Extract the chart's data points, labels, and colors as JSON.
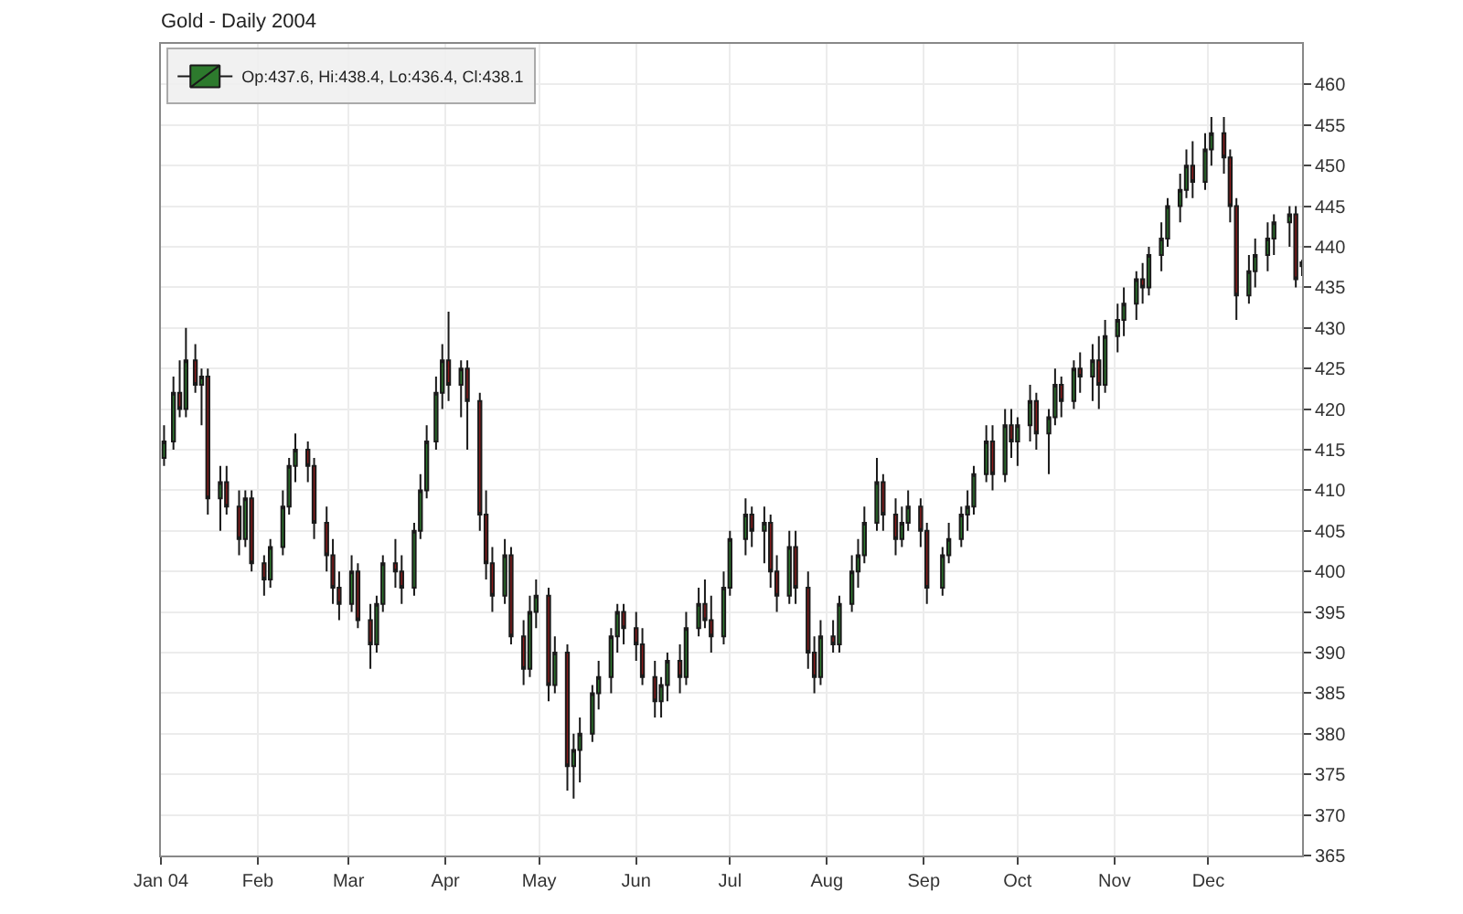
{
  "chart_data": {
    "type": "candlestick",
    "title": "Gold - Daily 2004",
    "x": [
      "2004-01-02",
      "2004-01-05",
      "2004-01-07",
      "2004-01-09",
      "2004-01-12",
      "2004-01-14",
      "2004-01-16",
      "2004-01-20",
      "2004-01-22",
      "2004-01-26",
      "2004-01-28",
      "2004-01-30",
      "2004-02-03",
      "2004-02-05",
      "2004-02-09",
      "2004-02-11",
      "2004-02-13",
      "2004-02-17",
      "2004-02-19",
      "2004-02-23",
      "2004-02-25",
      "2004-02-27",
      "2004-03-02",
      "2004-03-04",
      "2004-03-08",
      "2004-03-10",
      "2004-03-12",
      "2004-03-16",
      "2004-03-18",
      "2004-03-22",
      "2004-03-24",
      "2004-03-26",
      "2004-03-29",
      "2004-03-31",
      "2004-04-02",
      "2004-04-06",
      "2004-04-08",
      "2004-04-12",
      "2004-04-14",
      "2004-04-16",
      "2004-04-20",
      "2004-04-22",
      "2004-04-26",
      "2004-04-28",
      "2004-04-30",
      "2004-05-04",
      "2004-05-06",
      "2004-05-10",
      "2004-05-12",
      "2004-05-14",
      "2004-05-18",
      "2004-05-20",
      "2004-05-24",
      "2004-05-26",
      "2004-05-28",
      "2004-06-01",
      "2004-06-03",
      "2004-06-07",
      "2004-06-09",
      "2004-06-11",
      "2004-06-15",
      "2004-06-17",
      "2004-06-21",
      "2004-06-23",
      "2004-06-25",
      "2004-06-29",
      "2004-07-01",
      "2004-07-06",
      "2004-07-08",
      "2004-07-12",
      "2004-07-14",
      "2004-07-16",
      "2004-07-20",
      "2004-07-22",
      "2004-07-26",
      "2004-07-28",
      "2004-07-30",
      "2004-08-03",
      "2004-08-05",
      "2004-08-09",
      "2004-08-11",
      "2004-08-13",
      "2004-08-17",
      "2004-08-19",
      "2004-08-23",
      "2004-08-25",
      "2004-08-27",
      "2004-08-31",
      "2004-09-02",
      "2004-09-07",
      "2004-09-09",
      "2004-09-13",
      "2004-09-15",
      "2004-09-17",
      "2004-09-21",
      "2004-09-23",
      "2004-09-27",
      "2004-09-29",
      "2004-10-01",
      "2004-10-05",
      "2004-10-07",
      "2004-10-11",
      "2004-10-13",
      "2004-10-15",
      "2004-10-19",
      "2004-10-21",
      "2004-10-25",
      "2004-10-27",
      "2004-10-29",
      "2004-11-02",
      "2004-11-04",
      "2004-11-08",
      "2004-11-10",
      "2004-11-12",
      "2004-11-16",
      "2004-11-18",
      "2004-11-22",
      "2004-11-24",
      "2004-11-26",
      "2004-11-30",
      "2004-12-02",
      "2004-12-06",
      "2004-12-08",
      "2004-12-10",
      "2004-12-14",
      "2004-12-16",
      "2004-12-20",
      "2004-12-22",
      "2004-12-27",
      "2004-12-29",
      "2004-12-31"
    ],
    "series": [
      {
        "name": "Op:437.6, Hi:438.4, Lo:436.4, Cl:438.1",
        "ohlc": [
          [
            414,
            418,
            413,
            416
          ],
          [
            416,
            424,
            415,
            422
          ],
          [
            422,
            426,
            419,
            420
          ],
          [
            420,
            430,
            419,
            426
          ],
          [
            426,
            428,
            422,
            423
          ],
          [
            423,
            425,
            418,
            424
          ],
          [
            424,
            425,
            407,
            409
          ],
          [
            409,
            413,
            405,
            411
          ],
          [
            411,
            413,
            407,
            408
          ],
          [
            408,
            410,
            402,
            404
          ],
          [
            404,
            410,
            403,
            409
          ],
          [
            409,
            410,
            400,
            401
          ],
          [
            401,
            402,
            397,
            399
          ],
          [
            399,
            404,
            398,
            403
          ],
          [
            403,
            410,
            402,
            408
          ],
          [
            408,
            414,
            407,
            413
          ],
          [
            413,
            417,
            411,
            415
          ],
          [
            415,
            416,
            411,
            413
          ],
          [
            413,
            414,
            404,
            406
          ],
          [
            406,
            408,
            400,
            402
          ],
          [
            402,
            404,
            396,
            398
          ],
          [
            398,
            400,
            394,
            396
          ],
          [
            396,
            402,
            395,
            400
          ],
          [
            400,
            401,
            393,
            394
          ],
          [
            394,
            396,
            388,
            391
          ],
          [
            391,
            397,
            390,
            396
          ],
          [
            396,
            402,
            395,
            401
          ],
          [
            401,
            404,
            398,
            400
          ],
          [
            400,
            402,
            396,
            398
          ],
          [
            398,
            406,
            397,
            405
          ],
          [
            405,
            412,
            404,
            410
          ],
          [
            410,
            418,
            409,
            416
          ],
          [
            416,
            424,
            415,
            422
          ],
          [
            422,
            428,
            420,
            426
          ],
          [
            426,
            432,
            421,
            423
          ],
          [
            423,
            426,
            419,
            425
          ],
          [
            425,
            426,
            415,
            421
          ],
          [
            421,
            422,
            405,
            407
          ],
          [
            407,
            410,
            399,
            401
          ],
          [
            401,
            403,
            395,
            397
          ],
          [
            397,
            404,
            396,
            402
          ],
          [
            402,
            403,
            391,
            392
          ],
          [
            392,
            394,
            386,
            388
          ],
          [
            388,
            397,
            387,
            395
          ],
          [
            395,
            399,
            393,
            397
          ],
          [
            397,
            398,
            384,
            386
          ],
          [
            386,
            392,
            385,
            390
          ],
          [
            390,
            391,
            373,
            376
          ],
          [
            376,
            380,
            372,
            378
          ],
          [
            378,
            382,
            374,
            380
          ],
          [
            380,
            386,
            379,
            385
          ],
          [
            385,
            389,
            383,
            387
          ],
          [
            387,
            393,
            385,
            392
          ],
          [
            392,
            396,
            390,
            395
          ],
          [
            395,
            396,
            391,
            393
          ],
          [
            393,
            395,
            389,
            391
          ],
          [
            391,
            393,
            386,
            387
          ],
          [
            387,
            389,
            382,
            384
          ],
          [
            384,
            387,
            382,
            386
          ],
          [
            386,
            390,
            384,
            389
          ],
          [
            389,
            391,
            385,
            387
          ],
          [
            387,
            395,
            386,
            393
          ],
          [
            393,
            398,
            392,
            396
          ],
          [
            396,
            399,
            393,
            394
          ],
          [
            394,
            397,
            390,
            392
          ],
          [
            392,
            400,
            391,
            398
          ],
          [
            398,
            405,
            397,
            404
          ],
          [
            404,
            409,
            402,
            407
          ],
          [
            407,
            408,
            403,
            405
          ],
          [
            405,
            408,
            401,
            406
          ],
          [
            406,
            407,
            398,
            400
          ],
          [
            400,
            402,
            395,
            397
          ],
          [
            397,
            405,
            396,
            403
          ],
          [
            403,
            405,
            396,
            398
          ],
          [
            398,
            400,
            388,
            390
          ],
          [
            390,
            392,
            385,
            387
          ],
          [
            387,
            394,
            386,
            392
          ],
          [
            392,
            394,
            390,
            391
          ],
          [
            391,
            397,
            390,
            396
          ],
          [
            396,
            402,
            395,
            400
          ],
          [
            400,
            404,
            398,
            402
          ],
          [
            402,
            408,
            401,
            406
          ],
          [
            406,
            414,
            405,
            411
          ],
          [
            411,
            412,
            405,
            407
          ],
          [
            407,
            409,
            402,
            404
          ],
          [
            404,
            408,
            403,
            406
          ],
          [
            406,
            410,
            405,
            408
          ],
          [
            408,
            409,
            403,
            405
          ],
          [
            405,
            406,
            396,
            398
          ],
          [
            398,
            403,
            397,
            402
          ],
          [
            402,
            406,
            401,
            404
          ],
          [
            404,
            408,
            403,
            407
          ],
          [
            407,
            410,
            405,
            408
          ],
          [
            408,
            413,
            407,
            412
          ],
          [
            412,
            418,
            411,
            416
          ],
          [
            416,
            418,
            410,
            412
          ],
          [
            412,
            420,
            411,
            418
          ],
          [
            418,
            420,
            414,
            416
          ],
          [
            416,
            419,
            413,
            418
          ],
          [
            418,
            423,
            416,
            421
          ],
          [
            421,
            422,
            415,
            417
          ],
          [
            417,
            420,
            412,
            419
          ],
          [
            419,
            425,
            418,
            423
          ],
          [
            423,
            424,
            419,
            421
          ],
          [
            421,
            426,
            420,
            425
          ],
          [
            425,
            427,
            422,
            424
          ],
          [
            424,
            428,
            421,
            426
          ],
          [
            426,
            429,
            420,
            423
          ],
          [
            423,
            431,
            422,
            429
          ],
          [
            429,
            433,
            427,
            431
          ],
          [
            431,
            435,
            429,
            433
          ],
          [
            433,
            437,
            431,
            436
          ],
          [
            436,
            438,
            433,
            435
          ],
          [
            435,
            440,
            434,
            439
          ],
          [
            439,
            443,
            437,
            441
          ],
          [
            441,
            446,
            440,
            445
          ],
          [
            445,
            449,
            443,
            447
          ],
          [
            447,
            452,
            446,
            450
          ],
          [
            450,
            453,
            446,
            448
          ],
          [
            448,
            454,
            447,
            452
          ],
          [
            452,
            456,
            450,
            454
          ],
          [
            454,
            456,
            449,
            451
          ],
          [
            451,
            452,
            443,
            445
          ],
          [
            445,
            446,
            431,
            434
          ],
          [
            434,
            439,
            433,
            437
          ],
          [
            437,
            441,
            435,
            439
          ],
          [
            439,
            443,
            437,
            441
          ],
          [
            441,
            444,
            439,
            443
          ],
          [
            443,
            445,
            440,
            444
          ],
          [
            444,
            445,
            435,
            436
          ],
          [
            437.6,
            438.4,
            436.4,
            438.1
          ]
        ],
        "colors": [
          "#2d7a2d",
          "#2d7a2d",
          "#8b1a1a",
          "#2d7a2d",
          "#8b1a1a",
          "#2d7a2d",
          "#8b1a1a",
          "#2d7a2d",
          "#8b1a1a",
          "#8b1a1a",
          "#2d7a2d",
          "#8b1a1a",
          "#8b1a1a",
          "#2d7a2d",
          "#2d7a2d",
          "#2d7a2d",
          "#2d7a2d",
          "#8b1a1a",
          "#8b1a1a",
          "#8b1a1a",
          "#8b1a1a",
          "#8b1a1a",
          "#2d7a2d",
          "#8b1a1a",
          "#8b1a1a",
          "#2d7a2d",
          "#2d7a2d",
          "#8b1a1a",
          "#8b1a1a",
          "#2d7a2d",
          "#2d7a2d",
          "#2d7a2d",
          "#2d7a2d",
          "#2d7a2d",
          "#8b1a1a",
          "#2d7a2d",
          "#8b1a1a",
          "#8b1a1a",
          "#8b1a1a",
          "#8b1a1a",
          "#2d7a2d",
          "#8b1a1a",
          "#8b1a1a",
          "#2d7a2d",
          "#2d7a2d",
          "#8b1a1a",
          "#2d7a2d",
          "#8b1a1a",
          "#2d7a2d",
          "#2d7a2d",
          "#2d7a2d",
          "#2d7a2d",
          "#2d7a2d",
          "#2d7a2d",
          "#8b1a1a",
          "#8b1a1a",
          "#8b1a1a",
          "#8b1a1a",
          "#2d7a2d",
          "#2d7a2d",
          "#8b1a1a",
          "#2d7a2d",
          "#2d7a2d",
          "#8b1a1a",
          "#8b1a1a",
          "#2d7a2d",
          "#2d7a2d",
          "#2d7a2d",
          "#8b1a1a",
          "#2d7a2d",
          "#8b1a1a",
          "#8b1a1a",
          "#2d7a2d",
          "#8b1a1a",
          "#8b1a1a",
          "#8b1a1a",
          "#2d7a2d",
          "#8b1a1a",
          "#2d7a2d",
          "#2d7a2d",
          "#2d7a2d",
          "#2d7a2d",
          "#2d7a2d",
          "#8b1a1a",
          "#8b1a1a",
          "#2d7a2d",
          "#2d7a2d",
          "#8b1a1a",
          "#8b1a1a",
          "#2d7a2d",
          "#2d7a2d",
          "#2d7a2d",
          "#2d7a2d",
          "#2d7a2d",
          "#2d7a2d",
          "#8b1a1a",
          "#2d7a2d",
          "#8b1a1a",
          "#2d7a2d",
          "#2d7a2d",
          "#8b1a1a",
          "#2d7a2d",
          "#2d7a2d",
          "#8b1a1a",
          "#2d7a2d",
          "#8b1a1a",
          "#2d7a2d",
          "#8b1a1a",
          "#2d7a2d",
          "#2d7a2d",
          "#2d7a2d",
          "#2d7a2d",
          "#8b1a1a",
          "#2d7a2d",
          "#2d7a2d",
          "#2d7a2d",
          "#2d7a2d",
          "#2d7a2d",
          "#8b1a1a",
          "#2d7a2d",
          "#2d7a2d",
          "#8b1a1a",
          "#8b1a1a",
          "#8b1a1a",
          "#2d7a2d",
          "#2d7a2d",
          "#2d7a2d",
          "#2d7a2d",
          "#2d7a2d",
          "#8b1a1a",
          "#2d7a2d"
        ]
      }
    ],
    "xlim": [
      "2004-01-01",
      "2004-12-31"
    ],
    "xticks": [
      {
        "value": "2004-01-01",
        "label": "Jan 04"
      },
      {
        "value": "2004-02-01",
        "label": "Feb"
      },
      {
        "value": "2004-03-01",
        "label": "Mar"
      },
      {
        "value": "2004-04-01",
        "label": "Apr"
      },
      {
        "value": "2004-05-01",
        "label": "May"
      },
      {
        "value": "2004-06-01",
        "label": "Jun"
      },
      {
        "value": "2004-07-01",
        "label": "Jul"
      },
      {
        "value": "2004-08-01",
        "label": "Aug"
      },
      {
        "value": "2004-09-01",
        "label": "Sep"
      },
      {
        "value": "2004-10-01",
        "label": "Oct"
      },
      {
        "value": "2004-11-01",
        "label": "Nov"
      },
      {
        "value": "2004-12-01",
        "label": "Dec"
      }
    ],
    "ylim": [
      365,
      465
    ],
    "yticks": [
      365,
      370,
      375,
      380,
      385,
      390,
      395,
      400,
      405,
      410,
      415,
      420,
      425,
      430,
      435,
      440,
      445,
      450,
      455,
      460
    ],
    "grid": true,
    "legend": "top left"
  }
}
